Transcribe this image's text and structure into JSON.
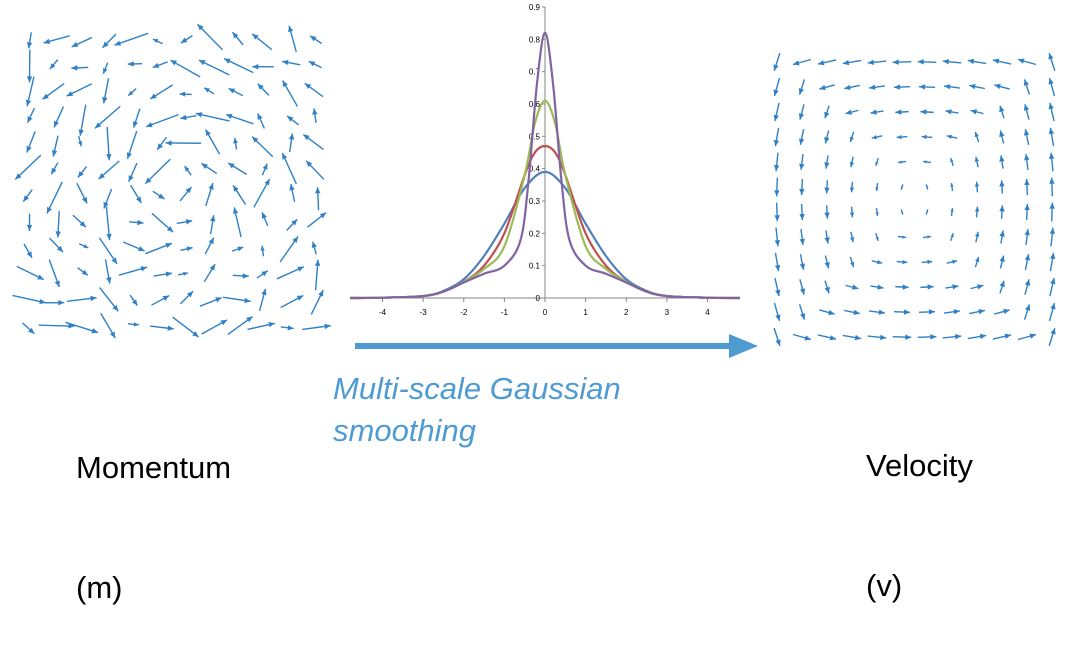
{
  "momentum": {
    "line1": "Momentum",
    "line2": "(m)"
  },
  "velocity": {
    "line1": "Velocity",
    "line2": "(v)"
  },
  "caption": {
    "line1": "Multi-scale Gaussian",
    "line2": "smoothing"
  },
  "colors": {
    "vector": "#2F80C5",
    "caption": "#4E9BD2",
    "arrow": "#4E9BD2",
    "axis": "#868686"
  },
  "chart_data": {
    "type": "line",
    "title": "",
    "xlabel": "",
    "ylabel": "",
    "xlim": [
      -4.8,
      4.8
    ],
    "ylim": [
      0,
      0.9
    ],
    "x_ticks": [
      "-4",
      "-3",
      "-2",
      "-1",
      "0",
      "1",
      "2",
      "3",
      "4"
    ],
    "y_ticks": [
      "0",
      "0.1",
      "0.2",
      "0.3",
      "0.4",
      "0.5",
      "0.6",
      "0.7",
      "0.8",
      "0.9"
    ],
    "series": [
      {
        "color": "#4F81BD",
        "x": [
          -4.8,
          -4,
          -3,
          -2.5,
          -2,
          -1.5,
          -1,
          -0.5,
          0,
          0.5,
          1,
          1.5,
          2,
          2.5,
          3,
          4,
          4.8
        ],
        "y": [
          0.0,
          0.001,
          0.006,
          0.022,
          0.058,
          0.13,
          0.23,
          0.34,
          0.39,
          0.34,
          0.23,
          0.13,
          0.058,
          0.022,
          0.006,
          0.001,
          0.0
        ]
      },
      {
        "color": "#C0504D",
        "x": [
          -4.8,
          -4,
          -3,
          -2.5,
          -2,
          -1.5,
          -1,
          -0.5,
          -0.25,
          0,
          0.25,
          0.5,
          1,
          1.5,
          2,
          2.5,
          3,
          4,
          4.8
        ],
        "y": [
          0.0,
          0.001,
          0.006,
          0.02,
          0.05,
          0.1,
          0.2,
          0.38,
          0.45,
          0.47,
          0.45,
          0.38,
          0.2,
          0.1,
          0.05,
          0.02,
          0.006,
          0.001,
          0.0
        ]
      },
      {
        "color": "#9BBB59",
        "x": [
          -4.8,
          -4,
          -3,
          -2.5,
          -2,
          -1.5,
          -1,
          -0.5,
          -0.25,
          0,
          0.25,
          0.5,
          1,
          1.5,
          2,
          2.5,
          3,
          4,
          4.8
        ],
        "y": [
          0.0,
          0.001,
          0.006,
          0.02,
          0.05,
          0.09,
          0.16,
          0.38,
          0.54,
          0.61,
          0.54,
          0.38,
          0.16,
          0.09,
          0.05,
          0.02,
          0.006,
          0.001,
          0.0
        ]
      },
      {
        "color": "#8064A2",
        "x": [
          -4.8,
          -4,
          -3,
          -2.5,
          -2,
          -1.5,
          -1,
          -0.6,
          -0.4,
          -0.2,
          0,
          0.2,
          0.4,
          0.6,
          1,
          1.5,
          2,
          2.5,
          3,
          4,
          4.8
        ],
        "y": [
          0.0,
          0.001,
          0.006,
          0.02,
          0.048,
          0.075,
          0.1,
          0.18,
          0.37,
          0.66,
          0.82,
          0.66,
          0.37,
          0.18,
          0.1,
          0.075,
          0.048,
          0.02,
          0.006,
          0.001,
          0.0
        ]
      }
    ]
  }
}
